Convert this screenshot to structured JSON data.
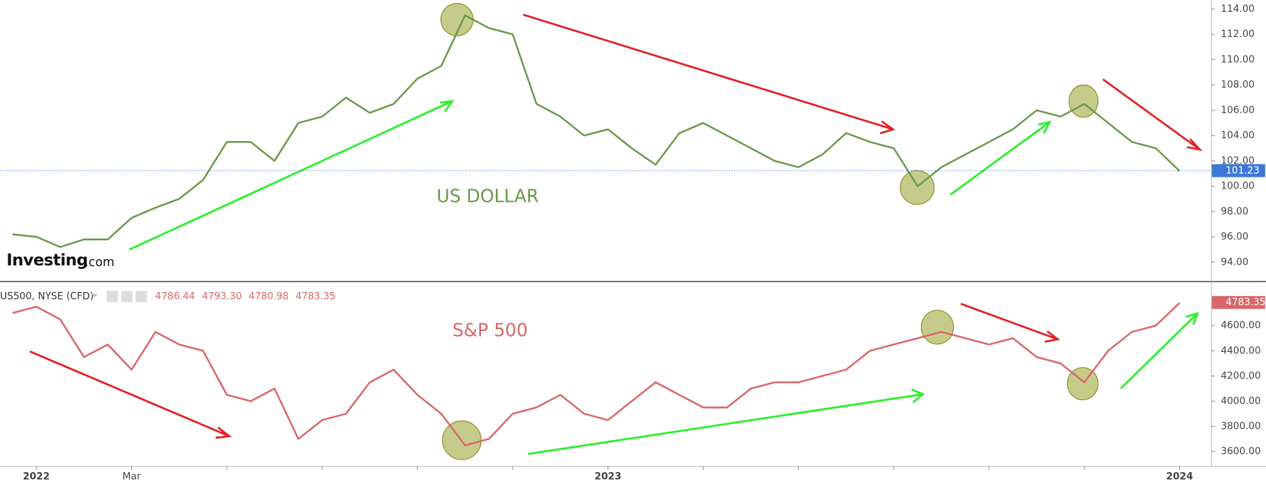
{
  "logo": {
    "main": "Investing",
    "suffix": ".com"
  },
  "chart_data": [
    {
      "type": "line",
      "annotation": "US DOLLAR",
      "color": "#6a9a4a",
      "tag_color": "#3c78d8",
      "price_line": true,
      "values": [
        96.2,
        96.0,
        95.2,
        95.8,
        95.8,
        97.5,
        98.3,
        99.0,
        100.5,
        103.5,
        103.5,
        102.0,
        105.0,
        105.5,
        107.0,
        105.8,
        106.5,
        108.5,
        109.5,
        113.5,
        112.5,
        112.0,
        106.5,
        105.5,
        104.0,
        104.5,
        103.0,
        101.7,
        104.2,
        105.0,
        104.0,
        103.0,
        102.0,
        101.5,
        102.5,
        104.2,
        103.5,
        103.0,
        100.0,
        101.5,
        102.5,
        103.5,
        104.5,
        106.0,
        105.5,
        106.5,
        105.0,
        103.5,
        103.0,
        101.2
      ],
      "last_value": 101.23,
      "ylim": [
        92.5,
        114.7
      ],
      "yticks": [
        {
          "value": 94,
          "label": "94.00"
        },
        {
          "value": 96,
          "label": "96.00"
        },
        {
          "value": 98,
          "label": "98.00"
        },
        {
          "value": 100,
          "label": "100.00"
        },
        {
          "value": 102,
          "label": "102.00"
        },
        {
          "value": 104,
          "label": "104.00"
        },
        {
          "value": 106,
          "label": "106.00"
        },
        {
          "value": 108,
          "label": "108.00"
        },
        {
          "value": 110,
          "label": "110.00"
        },
        {
          "value": 112,
          "label": "112.00"
        },
        {
          "value": 114,
          "label": "114.00"
        }
      ]
    },
    {
      "type": "line",
      "annotation": "S&P 500",
      "symbol": "US500, NYSE (CFD)",
      "ohlc": [
        "4786.44",
        "4793.30",
        "4780.98",
        "4783.35"
      ],
      "color": "#d9666a",
      "tag_color": "#d9666a",
      "price_line": false,
      "categories": [
        null,
        "2022",
        null,
        null,
        null,
        "Mar",
        null,
        null,
        null,
        null,
        null,
        null,
        null,
        null,
        null,
        null,
        null,
        null,
        null,
        null,
        null,
        null,
        null,
        null,
        null,
        "2023",
        null,
        null,
        null,
        null,
        null,
        null,
        null,
        null,
        null,
        null,
        null,
        null,
        null,
        null,
        null,
        null,
        null,
        null,
        null,
        null,
        null,
        null,
        null,
        "2024"
      ],
      "values": [
        4700,
        4750,
        4650,
        4350,
        4450,
        4250,
        4550,
        4450,
        4400,
        4050,
        4000,
        4100,
        3700,
        3850,
        3900,
        4150,
        4250,
        4050,
        3900,
        3650,
        3700,
        3900,
        3950,
        4050,
        3900,
        3850,
        4000,
        4150,
        4050,
        3950,
        3950,
        4100,
        4150,
        4150,
        4200,
        4250,
        4400,
        4450,
        4500,
        4550,
        4500,
        4450,
        4500,
        4350,
        4300,
        4150,
        4400,
        4550,
        4600,
        4780
      ],
      "last_value": 4783.35,
      "ylim": [
        3485,
        4946
      ],
      "yticks": [
        {
          "value": 3600,
          "label": "3600.00"
        },
        {
          "value": 3800,
          "label": "3800.00"
        },
        {
          "value": 4000,
          "label": "4000.00"
        },
        {
          "value": 4200,
          "label": "4200.00"
        },
        {
          "value": 4400,
          "label": "4400.00"
        },
        {
          "value": 4600,
          "label": "4600.00"
        }
      ]
    }
  ]
}
